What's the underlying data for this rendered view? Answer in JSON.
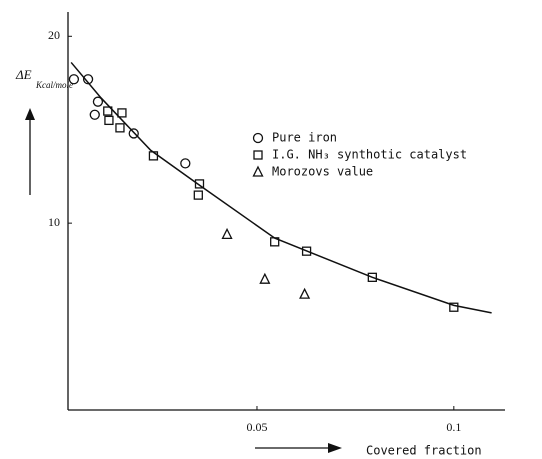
{
  "chart_data": {
    "type": "scatter",
    "xlabel": "Covered fraction",
    "ylabel": "ΔE",
    "ylabel_unit": "Kcal/mole",
    "xlim": [
      0.002,
      0.113
    ],
    "ylim": [
      0,
      21.3
    ],
    "xticks": [
      0.05,
      0.1
    ],
    "yticks": [
      10,
      20
    ],
    "series": [
      {
        "name": "Pure iron",
        "marker": "circle",
        "color": "#111111",
        "x": [
          0.0035,
          0.0071,
          0.0096,
          0.0088,
          0.0187,
          0.0318
        ],
        "values": [
          17.7,
          17.7,
          16.5,
          15.8,
          14.8,
          13.2
        ]
      },
      {
        "name": "I.G. NH₃ synthotic catalyst",
        "marker": "square",
        "color": "#111111",
        "x": [
          0.0121,
          0.0124,
          0.0157,
          0.0152,
          0.0237,
          0.0354,
          0.0351,
          0.0545,
          0.0626,
          0.0793,
          0.1
        ],
        "values": [
          16.0,
          15.5,
          15.9,
          15.1,
          13.6,
          12.1,
          11.5,
          9.0,
          8.5,
          7.1,
          5.5
        ]
      },
      {
        "name": "Morozovs value",
        "marker": "triangle",
        "color": "#111111",
        "x": [
          0.0424,
          0.052,
          0.0621
        ],
        "values": [
          9.4,
          7.0,
          6.2
        ]
      }
    ],
    "curve": {
      "color": "#111111",
      "x": [
        0.0028,
        0.0104,
        0.023,
        0.0356,
        0.0545,
        0.0793,
        0.1,
        0.1096
      ],
      "values": [
        18.6,
        16.7,
        13.9,
        12.0,
        9.2,
        7.1,
        5.6,
        5.2
      ]
    }
  }
}
